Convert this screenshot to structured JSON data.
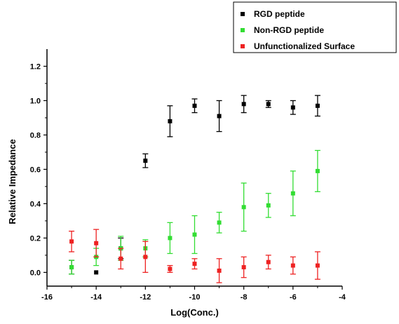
{
  "chart_data": {
    "type": "scatter",
    "title": "",
    "xlabel": "Log(Conc.)",
    "ylabel": "Relative Impedance",
    "xlim": [
      -16,
      -4
    ],
    "ylim": [
      -0.08,
      1.3
    ],
    "x_ticks": [
      -16,
      -14,
      -12,
      -10,
      -8,
      -6,
      -4
    ],
    "x_tick_labels": [
      "-16",
      "-14",
      "-12",
      "-10",
      "-8",
      "-6",
      "-4"
    ],
    "y_ticks": [
      0.0,
      0.2,
      0.4,
      0.6,
      0.8,
      1.0,
      1.2
    ],
    "y_tick_labels": [
      "0.0",
      "0.2",
      "0.4",
      "0.6",
      "0.8",
      "1.0",
      "1.2"
    ],
    "grid": false,
    "legend_position": "top-right",
    "series": [
      {
        "name": "RGD peptide",
        "color": "#000000",
        "x": [
          -15,
          -14,
          -13,
          -12,
          -11,
          -10,
          -9,
          -8,
          -7,
          -6,
          -5
        ],
        "y": [
          0.03,
          0.0,
          0.14,
          0.65,
          0.88,
          0.97,
          0.91,
          0.98,
          0.98,
          0.96,
          0.97
        ],
        "err": [
          0.04,
          0.0,
          0.06,
          0.04,
          0.09,
          0.04,
          0.09,
          0.05,
          0.02,
          0.04,
          0.06
        ]
      },
      {
        "name": "Non-RGD peptide",
        "color": "#33dd33",
        "x": [
          -15,
          -14,
          -13,
          -12,
          -11,
          -10,
          -9,
          -8,
          -7,
          -6,
          -5
        ],
        "y": [
          0.03,
          0.09,
          0.14,
          0.14,
          0.2,
          0.22,
          0.29,
          0.38,
          0.39,
          0.46,
          0.59
        ],
        "err": [
          0.04,
          0.05,
          0.07,
          0.05,
          0.09,
          0.11,
          0.06,
          0.14,
          0.07,
          0.13,
          0.12
        ]
      },
      {
        "name": "Unfunctionalized Surface",
        "color": "#ee2222",
        "x": [
          -15,
          -14,
          -13,
          -12,
          -11,
          -10,
          -9,
          -8,
          -7,
          -6,
          -5
        ],
        "y": [
          0.18,
          0.17,
          0.08,
          0.09,
          0.02,
          0.05,
          0.01,
          0.03,
          0.06,
          0.04,
          0.04
        ],
        "err": [
          0.06,
          0.08,
          0.06,
          0.09,
          0.02,
          0.03,
          0.07,
          0.06,
          0.04,
          0.05,
          0.08
        ]
      }
    ]
  }
}
